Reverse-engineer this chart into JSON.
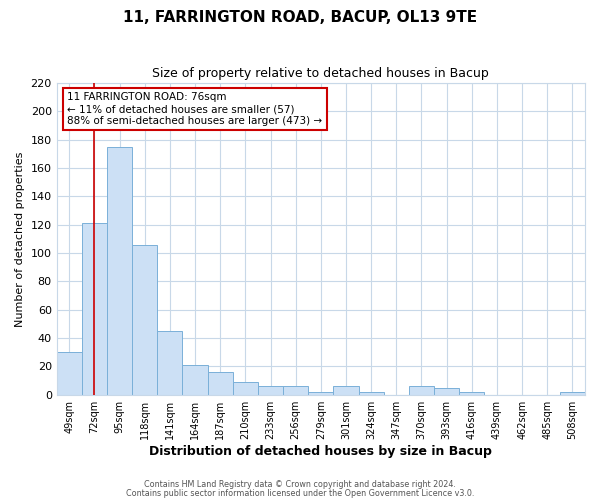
{
  "title": "11, FARRINGTON ROAD, BACUP, OL13 9TE",
  "subtitle": "Size of property relative to detached houses in Bacup",
  "xlabel": "Distribution of detached houses by size in Bacup",
  "ylabel": "Number of detached properties",
  "bar_labels": [
    "49sqm",
    "72sqm",
    "95sqm",
    "118sqm",
    "141sqm",
    "164sqm",
    "187sqm",
    "210sqm",
    "233sqm",
    "256sqm",
    "279sqm",
    "301sqm",
    "324sqm",
    "347sqm",
    "370sqm",
    "393sqm",
    "416sqm",
    "439sqm",
    "462sqm",
    "485sqm",
    "508sqm"
  ],
  "bar_values": [
    30,
    121,
    175,
    106,
    45,
    21,
    16,
    9,
    6,
    6,
    2,
    6,
    2,
    0,
    6,
    5,
    2,
    0,
    0,
    0,
    2
  ],
  "bar_color": "#cce0f5",
  "bar_edge_color": "#7ab0d8",
  "vline_x": 1,
  "vline_color": "#cc0000",
  "ylim": [
    0,
    220
  ],
  "yticks": [
    0,
    20,
    40,
    60,
    80,
    100,
    120,
    140,
    160,
    180,
    200,
    220
  ],
  "annotation_title": "11 FARRINGTON ROAD: 76sqm",
  "annotation_line1": "← 11% of detached houses are smaller (57)",
  "annotation_line2": "88% of semi-detached houses are larger (473) →",
  "annotation_box_color": "#ffffff",
  "annotation_box_edge": "#cc0000",
  "footer1": "Contains HM Land Registry data © Crown copyright and database right 2024.",
  "footer2": "Contains public sector information licensed under the Open Government Licence v3.0.",
  "bg_color": "#ffffff",
  "plot_bg_color": "#ffffff",
  "grid_color": "#c8d8e8"
}
